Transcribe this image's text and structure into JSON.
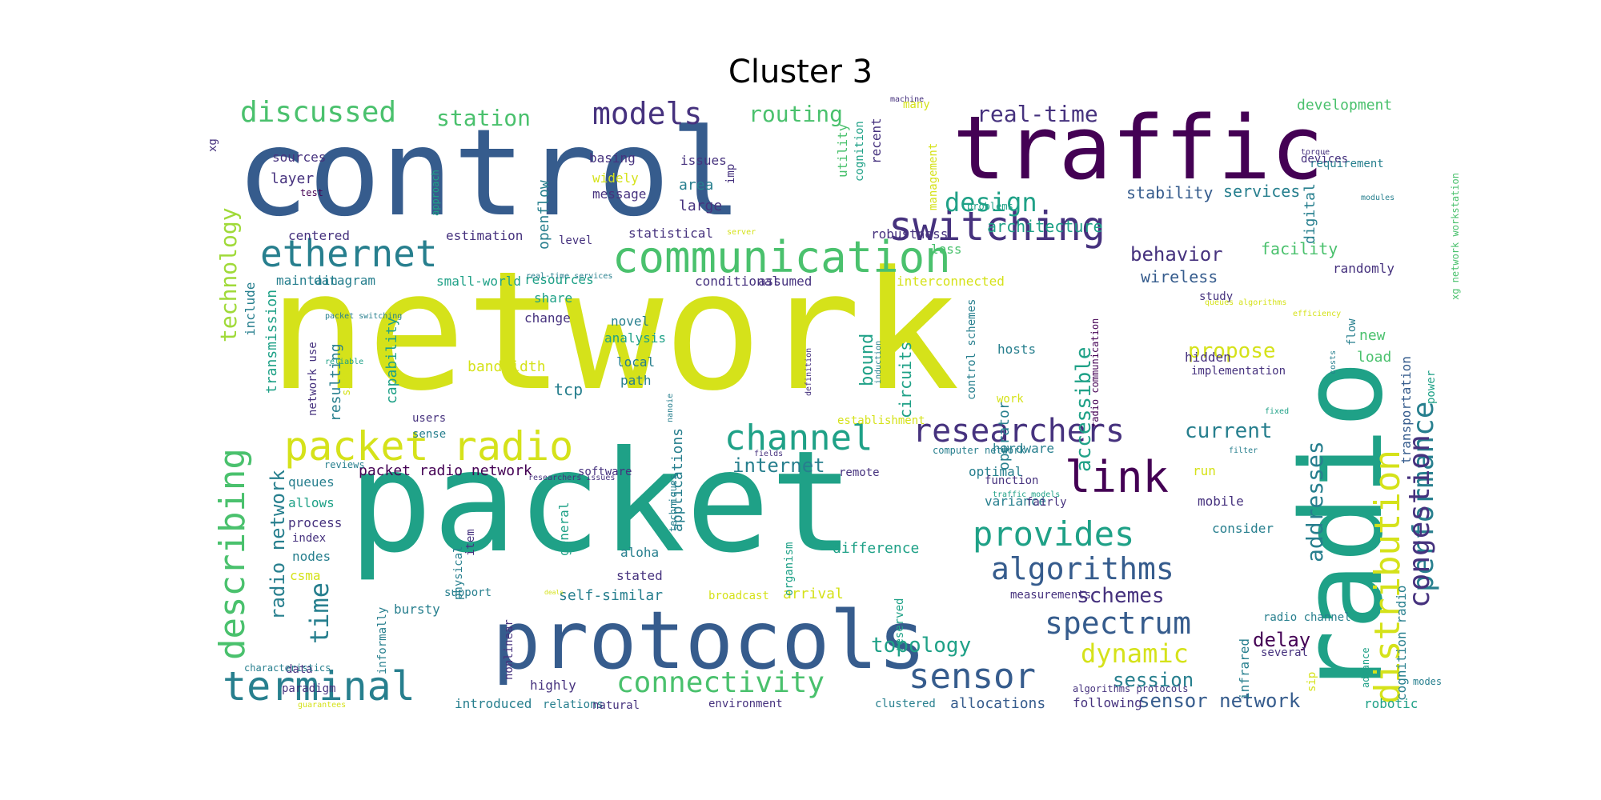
{
  "title": "Cluster 3",
  "palette": {
    "purple": "#440154",
    "indigo": "#46327e",
    "blue": "#365c8d",
    "teal": "#277f8e",
    "green": "#1fa187",
    "lightgreen": "#4ac16d",
    "lime": "#a0da39",
    "yellow": "#d5e21a"
  },
  "words": [
    {
      "text": "network",
      "color": "yellow"
    },
    {
      "text": "packet",
      "color": "green"
    },
    {
      "text": "control",
      "color": "blue"
    },
    {
      "text": "radio",
      "color": "green"
    },
    {
      "text": "traffic",
      "color": "purple"
    },
    {
      "text": "protocols",
      "color": "blue"
    },
    {
      "text": "communication",
      "color": "lightgreen"
    },
    {
      "text": "switching",
      "color": "indigo"
    },
    {
      "text": "ethernet",
      "color": "teal"
    },
    {
      "text": "packet radio",
      "color": "yellow"
    },
    {
      "text": "terminal",
      "color": "teal"
    },
    {
      "text": "sensor",
      "color": "blue"
    },
    {
      "text": "link",
      "color": "purple"
    },
    {
      "text": "channel",
      "color": "green"
    },
    {
      "text": "researchers",
      "color": "indigo"
    },
    {
      "text": "provides",
      "color": "green"
    },
    {
      "text": "describing",
      "color": "lightgreen"
    },
    {
      "text": "distribution",
      "color": "yellow"
    },
    {
      "text": "performance",
      "color": "teal"
    },
    {
      "text": "congestion",
      "color": "indigo"
    },
    {
      "text": "algorithms",
      "color": "blue"
    },
    {
      "text": "spectrum",
      "color": "blue"
    },
    {
      "text": "connectivity",
      "color": "lightgreen"
    },
    {
      "text": "discussed",
      "color": "lightgreen"
    },
    {
      "text": "models",
      "color": "indigo"
    },
    {
      "text": "design",
      "color": "green"
    },
    {
      "text": "dynamic",
      "color": "yellow"
    },
    {
      "text": "time",
      "color": "teal"
    },
    {
      "text": "addresses",
      "color": "teal"
    },
    {
      "text": "station",
      "color": "lightgreen"
    },
    {
      "text": "routing",
      "color": "lightgreen"
    },
    {
      "text": "real-time",
      "color": "indigo"
    },
    {
      "text": "technology",
      "color": "lime"
    },
    {
      "text": "topology",
      "color": "green"
    },
    {
      "text": "schemes",
      "color": "indigo"
    },
    {
      "text": "session",
      "color": "teal"
    },
    {
      "text": "sensor network",
      "color": "blue"
    },
    {
      "text": "accessible",
      "color": "green"
    },
    {
      "text": "propose",
      "color": "yellow"
    },
    {
      "text": "current",
      "color": "teal"
    },
    {
      "text": "internet",
      "color": "teal"
    },
    {
      "text": "radio network",
      "color": "teal"
    },
    {
      "text": "delay",
      "color": "purple"
    },
    {
      "text": "behavior",
      "color": "indigo"
    },
    {
      "text": "development",
      "color": "lightgreen"
    },
    {
      "text": "stability",
      "color": "blue"
    },
    {
      "text": "services",
      "color": "teal"
    },
    {
      "text": "architecture",
      "color": "green"
    },
    {
      "text": "facility",
      "color": "lightgreen"
    },
    {
      "text": "wireless",
      "color": "blue"
    },
    {
      "text": "randomly",
      "color": "indigo"
    },
    {
      "text": "packet radio network",
      "color": "purple"
    },
    {
      "text": "allocations",
      "color": "blue"
    },
    {
      "text": "digital",
      "color": "teal"
    },
    {
      "text": "transportation",
      "color": "blue"
    },
    {
      "text": "cognition radio",
      "color": "teal"
    },
    {
      "text": "layer",
      "color": "indigo"
    },
    {
      "text": "sources",
      "color": "indigo"
    },
    {
      "text": "openflow",
      "color": "teal"
    },
    {
      "text": "large",
      "color": "indigo"
    },
    {
      "text": "area",
      "color": "teal"
    },
    {
      "text": "widely",
      "color": "yellow"
    },
    {
      "text": "message",
      "color": "indigo"
    },
    {
      "text": "basing",
      "color": "indigo"
    },
    {
      "text": "issues",
      "color": "indigo"
    },
    {
      "text": "imp",
      "color": "indigo"
    },
    {
      "text": "utility",
      "color": "lightgreen"
    },
    {
      "text": "cognition",
      "color": "green"
    },
    {
      "text": "recent",
      "color": "indigo"
    },
    {
      "text": "management",
      "color": "yellow"
    },
    {
      "text": "many",
      "color": "yellow"
    },
    {
      "text": "problems",
      "color": "green"
    },
    {
      "text": "robustness",
      "color": "indigo"
    },
    {
      "text": "loss",
      "color": "lightgreen"
    },
    {
      "text": "statistical",
      "color": "indigo"
    },
    {
      "text": "estimation",
      "color": "indigo"
    },
    {
      "text": "centered",
      "color": "indigo"
    },
    {
      "text": "level",
      "color": "indigo"
    },
    {
      "text": "datagram",
      "color": "teal"
    },
    {
      "text": "small-world",
      "color": "green"
    },
    {
      "text": "maintain",
      "color": "teal"
    },
    {
      "text": "include",
      "color": "teal"
    },
    {
      "text": "share",
      "color": "green"
    },
    {
      "text": "resources",
      "color": "green"
    },
    {
      "text": "conditional",
      "color": "indigo"
    },
    {
      "text": "assumed",
      "color": "indigo"
    },
    {
      "text": "interconnected",
      "color": "yellow"
    },
    {
      "text": "transmission",
      "color": "green"
    },
    {
      "text": "capability",
      "color": "green"
    },
    {
      "text": "resulting",
      "color": "teal"
    },
    {
      "text": "simple",
      "color": "yellow"
    },
    {
      "text": "network use",
      "color": "indigo"
    },
    {
      "text": "change",
      "color": "indigo"
    },
    {
      "text": "novel",
      "color": "teal"
    },
    {
      "text": "analysis",
      "color": "green"
    },
    {
      "text": "local",
      "color": "teal"
    },
    {
      "text": "path",
      "color": "teal"
    },
    {
      "text": "bandwidth",
      "color": "yellow"
    },
    {
      "text": "tcp",
      "color": "teal"
    },
    {
      "text": "bound",
      "color": "green"
    },
    {
      "text": "circuits",
      "color": "green"
    },
    {
      "text": "control schemes",
      "color": "teal"
    },
    {
      "text": "radio communication",
      "color": "purple"
    },
    {
      "text": "operator",
      "color": "teal"
    },
    {
      "text": "hosts",
      "color": "teal"
    },
    {
      "text": "work",
      "color": "yellow"
    },
    {
      "text": "implementation",
      "color": "indigo"
    },
    {
      "text": "hidden",
      "color": "indigo"
    },
    {
      "text": "load",
      "color": "lightgreen"
    },
    {
      "text": "new",
      "color": "lightgreen"
    },
    {
      "text": "flow",
      "color": "teal"
    },
    {
      "text": "power",
      "color": "green"
    },
    {
      "text": "study",
      "color": "indigo"
    },
    {
      "text": "xg network workstation",
      "color": "lightgreen"
    },
    {
      "text": "users",
      "color": "indigo"
    },
    {
      "text": "sense",
      "color": "teal"
    },
    {
      "text": "queues",
      "color": "teal"
    },
    {
      "text": "allows",
      "color": "green"
    },
    {
      "text": "process",
      "color": "indigo"
    },
    {
      "text": "index",
      "color": "indigo"
    },
    {
      "text": "nodes",
      "color": "teal"
    },
    {
      "text": "csma",
      "color": "yellow"
    },
    {
      "text": "data",
      "color": "indigo"
    },
    {
      "text": "paradigm",
      "color": "indigo"
    },
    {
      "text": "characteristics",
      "color": "teal"
    },
    {
      "text": "software",
      "color": "indigo"
    },
    {
      "text": "applications",
      "color": "teal"
    },
    {
      "text": "item",
      "color": "indigo"
    },
    {
      "text": "general",
      "color": "green"
    },
    {
      "text": "aloha",
      "color": "teal"
    },
    {
      "text": "stated",
      "color": "indigo"
    },
    {
      "text": "self-similar",
      "color": "teal"
    },
    {
      "text": "bursty",
      "color": "teal"
    },
    {
      "text": "support",
      "color": "teal"
    },
    {
      "text": "informally",
      "color": "teal"
    },
    {
      "text": "physical",
      "color": "teal"
    },
    {
      "text": "nonlinear",
      "color": "indigo"
    },
    {
      "text": "highly",
      "color": "indigo"
    },
    {
      "text": "introduced",
      "color": "teal"
    },
    {
      "text": "relations",
      "color": "teal"
    },
    {
      "text": "natural",
      "color": "indigo"
    },
    {
      "text": "environment",
      "color": "indigo"
    },
    {
      "text": "clustered",
      "color": "teal"
    },
    {
      "text": "following",
      "color": "indigo"
    },
    {
      "text": "robotic",
      "color": "green"
    },
    {
      "text": "remote",
      "color": "indigo"
    },
    {
      "text": "optimal",
      "color": "teal"
    },
    {
      "text": "function",
      "color": "indigo"
    },
    {
      "text": "variance",
      "color": "teal"
    },
    {
      "text": "mobile",
      "color": "indigo"
    },
    {
      "text": "fairly",
      "color": "indigo"
    },
    {
      "text": "hardware",
      "color": "teal"
    },
    {
      "text": "consider",
      "color": "teal"
    },
    {
      "text": "difference",
      "color": "green"
    },
    {
      "text": "arrival",
      "color": "yellow"
    },
    {
      "text": "broadcast",
      "color": "yellow"
    },
    {
      "text": "organism",
      "color": "green"
    },
    {
      "text": "reserved",
      "color": "green"
    },
    {
      "text": "measurements",
      "color": "indigo"
    },
    {
      "text": "infrared",
      "color": "teal"
    },
    {
      "text": "radio channel",
      "color": "teal"
    },
    {
      "text": "several",
      "color": "indigo"
    },
    {
      "text": "run",
      "color": "yellow"
    },
    {
      "text": "sip",
      "color": "yellow"
    },
    {
      "text": "establishment",
      "color": "yellow"
    },
    {
      "text": "xg",
      "color": "indigo"
    },
    {
      "text": "test",
      "color": "purple"
    },
    {
      "text": "approach",
      "color": "green"
    },
    {
      "text": "requirement",
      "color": "teal"
    },
    {
      "text": "devices",
      "color": "indigo"
    },
    {
      "text": "torque",
      "color": "indigo"
    },
    {
      "text": "modules",
      "color": "teal"
    },
    {
      "text": "costs",
      "color": "teal"
    },
    {
      "text": "computer network",
      "color": "teal"
    },
    {
      "text": "fields",
      "color": "indigo"
    },
    {
      "text": "definition",
      "color": "indigo"
    },
    {
      "text": "techniques",
      "color": "teal"
    },
    {
      "text": "researchers issues",
      "color": "indigo"
    },
    {
      "text": "simulation",
      "color": "green"
    },
    {
      "text": "reviews",
      "color": "teal"
    },
    {
      "text": "filter",
      "color": "teal"
    },
    {
      "text": "traffic models",
      "color": "green"
    },
    {
      "text": "algorithms protocols",
      "color": "indigo"
    },
    {
      "text": "advance",
      "color": "green"
    },
    {
      "text": "modes",
      "color": "teal"
    },
    {
      "text": "guarantees",
      "color": "yellow"
    },
    {
      "text": "server",
      "color": "yellow"
    },
    {
      "text": "real-time services",
      "color": "teal"
    },
    {
      "text": "queues algorithms",
      "color": "yellow"
    },
    {
      "text": "efficiency",
      "color": "yellow"
    },
    {
      "text": "fixed",
      "color": "green"
    },
    {
      "text": "nanoie",
      "color": "teal"
    },
    {
      "text": "induction",
      "color": "teal"
    },
    {
      "text": "reliable",
      "color": "green"
    },
    {
      "text": "packet switching",
      "color": "teal"
    },
    {
      "text": "machine",
      "color": "indigo"
    },
    {
      "text": "deals",
      "color": "yellow"
    },
    {
      "text": "employed",
      "color": "yellow"
    },
    {
      "text": "rpl",
      "color": "teal"
    }
  ]
}
